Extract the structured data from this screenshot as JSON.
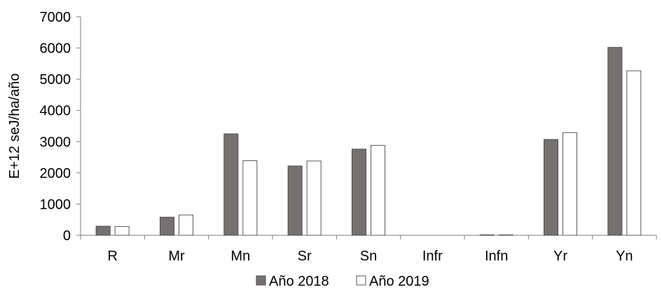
{
  "chart_data": {
    "type": "bar",
    "categories": [
      "R",
      "Mr",
      "Mn",
      "Sr",
      "Sn",
      "Infr",
      "Infn",
      "Yr",
      "Yn"
    ],
    "series": [
      {
        "name": "Año 2018",
        "color": "#767171",
        "values": [
          290,
          580,
          3250,
          2220,
          2760,
          0,
          15,
          3070,
          6020
        ]
      },
      {
        "name": "Año 2019",
        "color": "#ffffff",
        "values": [
          280,
          650,
          2390,
          2380,
          2880,
          0,
          15,
          3290,
          5270
        ]
      }
    ],
    "title": "",
    "xlabel": "",
    "ylabel": "E+12 seJ/ha/año",
    "ylim": [
      0,
      7000
    ],
    "yticks": [
      0,
      1000,
      2000,
      3000,
      4000,
      5000,
      6000,
      7000
    ],
    "grid": false,
    "legend": "bottom"
  }
}
